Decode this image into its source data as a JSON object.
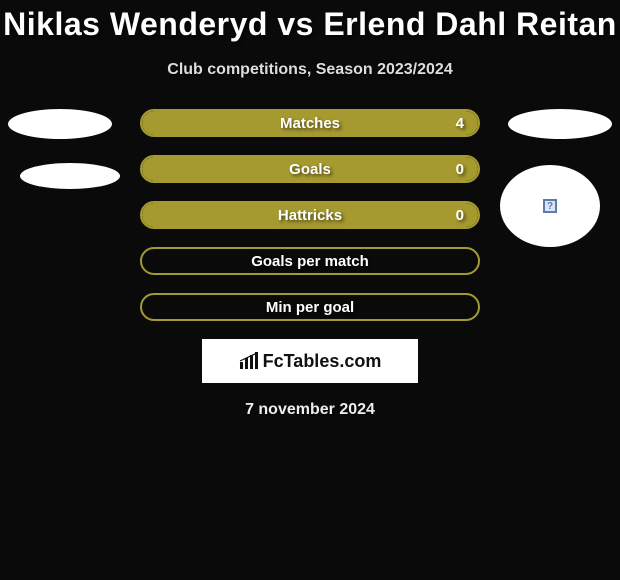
{
  "title": "Niklas Wenderyd vs Erlend Dahl Reitan",
  "subtitle": "Club competitions, Season 2023/2024",
  "bars": [
    {
      "label": "Matches",
      "value": "4",
      "fill_pct": 100,
      "fill_color": "#a59a2f",
      "border_color": "#a59a2f",
      "show_value": true
    },
    {
      "label": "Goals",
      "value": "0",
      "fill_pct": 100,
      "fill_color": "#a59a2f",
      "border_color": "#a59a2f",
      "show_value": true
    },
    {
      "label": "Hattricks",
      "value": "0",
      "fill_pct": 100,
      "fill_color": "#a59a2f",
      "border_color": "#a59a2f",
      "show_value": true
    },
    {
      "label": "Goals per match",
      "value": "",
      "fill_pct": 0,
      "fill_color": "#a59a2f",
      "border_color": "#a59a2f",
      "show_value": false
    },
    {
      "label": "Min per goal",
      "value": "",
      "fill_pct": 0,
      "fill_color": "#a59a2f",
      "border_color": "#a59a2f",
      "show_value": false
    }
  ],
  "logo_text": "FcTables.com",
  "date": "7 november 2024",
  "colors": {
    "background": "#0a0a0a",
    "text": "#ffffff",
    "accent": "#a59a2f",
    "avatar_bg": "#ffffff"
  },
  "avatar_right_icon": "?"
}
